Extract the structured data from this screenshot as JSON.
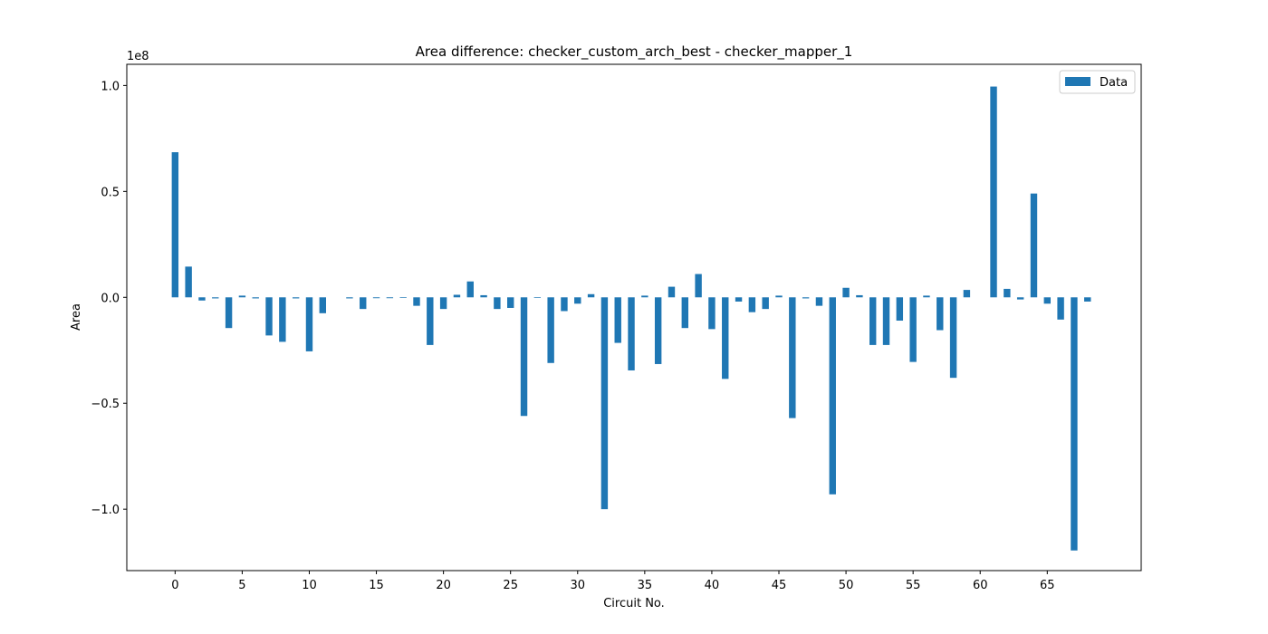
{
  "chart_data": {
    "type": "bar",
    "title": "Area difference: checker_custom_arch_best - checker_mapper_1",
    "xlabel": "Circuit No.",
    "ylabel": "Area",
    "y_scale_label": "1e8",
    "xlim": [
      -3.6,
      72.0
    ],
    "ylim": [
      -1.29,
      1.1
    ],
    "y_unit_multiplier": 100000000,
    "x_ticks": [
      0,
      5,
      10,
      15,
      20,
      25,
      30,
      35,
      40,
      45,
      50,
      55,
      60,
      65
    ],
    "x_tick_labels": [
      "0",
      "5",
      "10",
      "15",
      "20",
      "25",
      "30",
      "35",
      "40",
      "45",
      "50",
      "55",
      "60",
      "65"
    ],
    "y_ticks": [
      -1.0,
      -0.5,
      0.0,
      0.5,
      1.0
    ],
    "y_tick_labels": [
      "−1.0",
      "−0.5",
      "0.0",
      "0.5",
      "1.0"
    ],
    "legend": {
      "position": "top-right",
      "entries": [
        "Data"
      ]
    },
    "grid": false,
    "bar_color": "#1f77b4",
    "x": [
      0,
      1,
      2,
      3,
      4,
      5,
      6,
      7,
      8,
      9,
      10,
      11,
      12,
      13,
      14,
      15,
      16,
      17,
      18,
      19,
      20,
      21,
      22,
      23,
      24,
      25,
      26,
      27,
      28,
      29,
      30,
      31,
      32,
      33,
      34,
      35,
      36,
      37,
      38,
      39,
      40,
      41,
      42,
      43,
      44,
      45,
      46,
      47,
      48,
      49,
      50,
      51,
      52,
      53,
      54,
      55,
      56,
      57,
      58,
      59,
      60,
      61,
      62,
      63,
      64,
      65,
      66,
      67,
      68
    ],
    "values": [
      0.685,
      0.145,
      -0.015,
      -0.005,
      -0.145,
      0.008,
      -0.005,
      -0.18,
      -0.21,
      -0.005,
      -0.255,
      -0.075,
      0.0,
      -0.005,
      -0.055,
      -0.004,
      -0.004,
      -0.003,
      -0.04,
      -0.225,
      -0.055,
      0.012,
      0.075,
      0.01,
      -0.055,
      -0.05,
      -0.56,
      -0.003,
      -0.31,
      -0.065,
      -0.03,
      0.015,
      -1.0,
      -0.215,
      -0.345,
      0.008,
      -0.315,
      0.05,
      -0.145,
      0.11,
      -0.15,
      -0.385,
      -0.02,
      -0.07,
      -0.055,
      0.008,
      -0.57,
      -0.005,
      -0.04,
      -0.93,
      0.045,
      0.01,
      -0.225,
      -0.225,
      -0.11,
      -0.305,
      0.008,
      -0.155,
      -0.38,
      0.035,
      0.0,
      0.995,
      0.04,
      -0.01,
      0.49,
      -0.03,
      -0.105,
      -1.195,
      -0.02
    ]
  }
}
